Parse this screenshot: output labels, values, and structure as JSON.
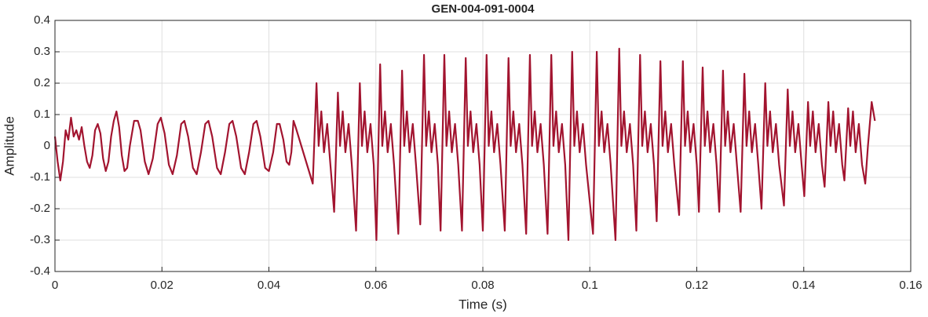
{
  "chart_data": {
    "type": "line",
    "title": "GEN-004-091-0004",
    "xlabel": "Time (s)",
    "ylabel": "Amplitude",
    "color": "#a2142f",
    "grid": true,
    "xlim": [
      0,
      0.16
    ],
    "xticks": [
      0,
      0.02,
      0.04,
      0.06,
      0.08,
      0.1,
      0.12,
      0.14,
      0.16
    ],
    "ylim": [
      -0.4,
      0.4
    ],
    "yticks": [
      -0.4,
      -0.3,
      -0.2,
      -0.1,
      0,
      0.1,
      0.2,
      0.3,
      0.4
    ],
    "x": [
      0,
      0.0005,
      0.001,
      0.0015,
      0.002,
      0.0025,
      0.003,
      0.0035,
      0.004,
      0.0045,
      0.005,
      0.0055,
      0.006,
      0.0065,
      0.007,
      0.0075,
      0.008,
      0.0085,
      0.009,
      0.0095,
      0.01,
      0.0105,
      0.011,
      0.0115,
      0.012,
      0.0125,
      0.013,
      0.0135,
      0.014,
      0.0148,
      0.0155,
      0.016,
      0.0168,
      0.0175,
      0.0183,
      0.0192,
      0.0198,
      0.0205,
      0.0213,
      0.022,
      0.0228,
      0.0236,
      0.0242,
      0.0249,
      0.0258,
      0.0265,
      0.0273,
      0.0281,
      0.0287,
      0.0294,
      0.0303,
      0.031,
      0.0318,
      0.0326,
      0.0332,
      0.0339,
      0.0348,
      0.0355,
      0.0363,
      0.0371,
      0.0377,
      0.0384,
      0.0393,
      0.04,
      0.0408,
      0.0415,
      0.042,
      0.0427,
      0.0433,
      0.0438,
      0.0442,
      0.0446,
      0.045,
      0.0482,
      0.0489,
      0.0493,
      0.0498,
      0.0503,
      0.0509,
      0.0515,
      0.0522,
      0.0529,
      0.0533,
      0.0538,
      0.0543,
      0.0549,
      0.0555,
      0.0563,
      0.057,
      0.0574,
      0.0579,
      0.0584,
      0.059,
      0.0596,
      0.0601,
      0.0608,
      0.0612,
      0.0617,
      0.0622,
      0.0628,
      0.0634,
      0.0642,
      0.0649,
      0.0653,
      0.0658,
      0.0663,
      0.0669,
      0.0675,
      0.0683,
      0.069,
      0.0694,
      0.0699,
      0.0704,
      0.071,
      0.0716,
      0.0721,
      0.0728,
      0.0732,
      0.0737,
      0.0742,
      0.0748,
      0.0754,
      0.0761,
      0.0768,
      0.0772,
      0.0777,
      0.0782,
      0.0788,
      0.0794,
      0.08,
      0.0807,
      0.0811,
      0.0816,
      0.0821,
      0.0827,
      0.0833,
      0.0841,
      0.0848,
      0.0852,
      0.0857,
      0.0862,
      0.0868,
      0.0874,
      0.0881,
      0.0888,
      0.0892,
      0.0897,
      0.0902,
      0.0908,
      0.0914,
      0.0921,
      0.0928,
      0.0932,
      0.0937,
      0.0942,
      0.0948,
      0.0954,
      0.096,
      0.0967,
      0.0971,
      0.0976,
      0.0981,
      0.0987,
      0.0993,
      0.1006,
      0.1013,
      0.1017,
      0.1022,
      0.1027,
      0.1033,
      0.1039,
      0.1048,
      0.1055,
      0.1059,
      0.1064,
      0.1069,
      0.1075,
      0.1081,
      0.1087,
      0.1094,
      0.1098,
      0.1103,
      0.1108,
      0.1114,
      0.112,
      0.1125,
      0.1132,
      0.1136,
      0.1141,
      0.1146,
      0.1152,
      0.1158,
      0.1167,
      0.1174,
      0.1178,
      0.1183,
      0.1188,
      0.1194,
      0.12,
      0.1204,
      0.1211,
      0.1215,
      0.122,
      0.1225,
      0.1231,
      0.1237,
      0.1242,
      0.1249,
      0.1253,
      0.1258,
      0.1263,
      0.1269,
      0.1275,
      0.1282,
      0.1289,
      0.1293,
      0.1298,
      0.1303,
      0.1309,
      0.1315,
      0.1321,
      0.1328,
      0.1332,
      0.1337,
      0.1342,
      0.1348,
      0.1354,
      0.1363,
      0.137,
      0.1374,
      0.1379,
      0.1384,
      0.139,
      0.1396,
      0.1401,
      0.1408,
      0.1412,
      0.1417,
      0.1422,
      0.1428,
      0.1434,
      0.1439,
      0.1446,
      0.145,
      0.1455,
      0.146,
      0.1466,
      0.1472,
      0.1476,
      0.1483,
      0.1487,
      0.1492,
      0.1497,
      0.1503,
      0.1509,
      0.1515,
      0.152,
      0.1527,
      0.1533
    ],
    "values": [
      0.03,
      -0.05,
      -0.11,
      -0.05,
      0.05,
      0.02,
      0.09,
      0.03,
      0.05,
      0.02,
      0.06,
      0,
      -0.05,
      -0.07,
      -0.03,
      0.05,
      0.07,
      0.04,
      -0.04,
      -0.08,
      -0.05,
      0.03,
      0.08,
      0.11,
      0.06,
      -0.03,
      -0.08,
      -0.07,
      0,
      0.08,
      0.08,
      0.05,
      -0.05,
      -0.09,
      -0.04,
      0.07,
      0.09,
      0.04,
      -0.06,
      -0.09,
      -0.03,
      0.07,
      0.08,
      0.03,
      -0.07,
      -0.09,
      -0.02,
      0.07,
      0.08,
      0.03,
      -0.07,
      -0.09,
      -0.02,
      0.07,
      0.08,
      0.03,
      -0.07,
      -0.09,
      -0.02,
      0.07,
      0.08,
      0.03,
      -0.07,
      -0.08,
      -0.02,
      0.07,
      0.07,
      0.02,
      -0.05,
      -0.06,
      -0.02,
      0.08,
      0.06,
      -0.12,
      0.2,
      0,
      0.11,
      -0.02,
      0.07,
      -0.06,
      -0.21,
      0.17,
      0,
      0.11,
      -0.02,
      0.07,
      -0.06,
      -0.27,
      0.2,
      0,
      0.11,
      -0.02,
      0.07,
      -0.06,
      -0.3,
      0.26,
      0,
      0.11,
      -0.02,
      0.07,
      -0.06,
      -0.28,
      0.24,
      0,
      0.11,
      -0.02,
      0.07,
      -0.06,
      -0.25,
      0.29,
      0,
      0.11,
      -0.02,
      0.07,
      -0.06,
      -0.27,
      0.29,
      0,
      0.11,
      -0.02,
      0.07,
      -0.06,
      -0.27,
      0.28,
      0,
      0.11,
      -0.02,
      0.07,
      -0.06,
      -0.27,
      0.29,
      0,
      0.11,
      -0.02,
      0.07,
      -0.06,
      -0.27,
      0.28,
      0,
      0.11,
      -0.02,
      0.07,
      -0.06,
      -0.28,
      0.29,
      0,
      0.11,
      -0.02,
      0.07,
      -0.06,
      -0.28,
      0.29,
      0,
      0.11,
      -0.02,
      0.07,
      -0.06,
      -0.3,
      0.3,
      0,
      0.11,
      -0.02,
      0.07,
      -0.06,
      -0.28,
      0.3,
      0,
      0.11,
      -0.02,
      0.07,
      -0.06,
      -0.3,
      0.31,
      0,
      0.11,
      -0.02,
      0.07,
      -0.06,
      -0.27,
      0.29,
      0,
      0.11,
      -0.02,
      0.07,
      -0.06,
      -0.24,
      0.27,
      0,
      0.11,
      -0.02,
      0.07,
      -0.06,
      -0.22,
      0.27,
      0,
      0.11,
      -0.02,
      0.07,
      -0.06,
      -0.21,
      0.25,
      0,
      0.11,
      -0.02,
      0.07,
      -0.06,
      -0.21,
      0.24,
      0,
      0.11,
      -0.02,
      0.07,
      -0.06,
      -0.21,
      0.23,
      0,
      0.11,
      -0.02,
      0.07,
      -0.06,
      -0.2,
      0.2,
      0,
      0.11,
      -0.02,
      0.07,
      -0.06,
      -0.19,
      0.18,
      0,
      0.11,
      -0.02,
      0.07,
      -0.06,
      -0.16,
      0.14,
      0,
      0.11,
      -0.02,
      0.07,
      -0.06,
      -0.13,
      0.14,
      0,
      0.11,
      -0.02,
      0.07,
      -0.06,
      -0.11,
      0.12,
      0,
      0.11,
      -0.02,
      0.07,
      -0.06,
      -0.12,
      0,
      0.14,
      0.08
    ]
  }
}
